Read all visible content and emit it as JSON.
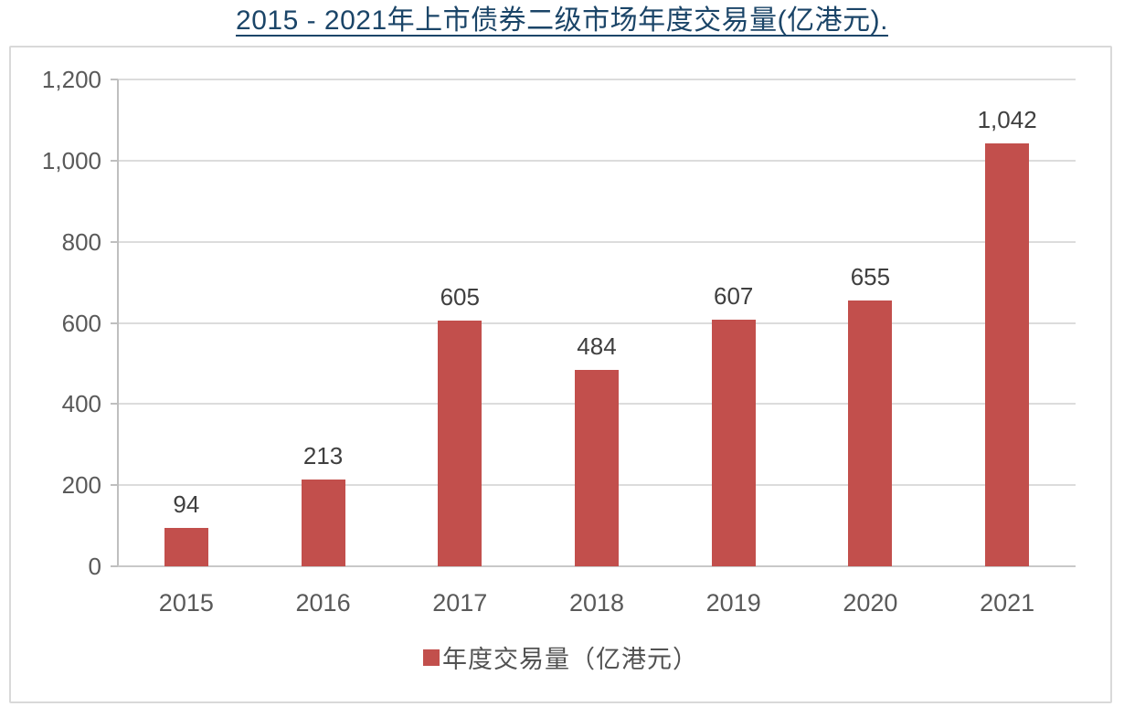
{
  "colors": {
    "bar": "#c24f4c",
    "title": "#1b4568",
    "axis_line": "#bfbfbf",
    "baseline": "#c8c8c8",
    "gridline": "#dcdcdc",
    "tick_label": "#595959",
    "data_label": "#3f3f3f",
    "legend_text": "#525252",
    "chart_border": "#d9d9d9"
  },
  "legend": {
    "label": "年度交易量（亿港元）",
    "marker": "square-icon"
  },
  "chart_data": {
    "type": "bar",
    "title": "2015 - 2021年上市债券二级市场年度交易量(亿港元).",
    "categories": [
      "2015",
      "2016",
      "2017",
      "2018",
      "2019",
      "2020",
      "2021"
    ],
    "values": [
      94,
      213,
      605,
      484,
      607,
      655,
      1042
    ],
    "value_labels": [
      "94",
      "213",
      "605",
      "484",
      "607",
      "655",
      "1,042"
    ],
    "series_name": "年度交易量（亿港元）",
    "xlabel": "",
    "ylabel": "",
    "ylim": [
      0,
      1200
    ],
    "yticks": [
      0,
      200,
      400,
      600,
      800,
      1000,
      1200
    ],
    "ytick_labels": [
      "0",
      "200",
      "400",
      "600",
      "800",
      "1,000",
      "1,200"
    ],
    "grid": true,
    "legend_position": "bottom",
    "data_labels_shown": true
  }
}
